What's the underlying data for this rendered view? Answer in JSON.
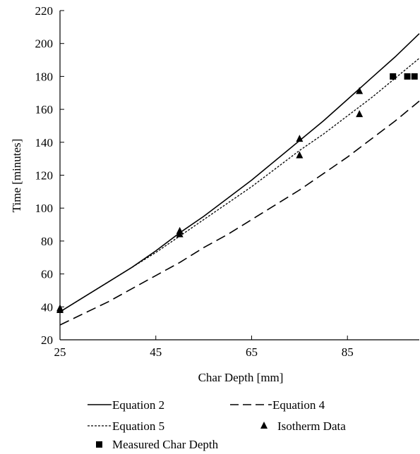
{
  "chart_data": {
    "type": "line",
    "title": "",
    "xlabel": "Char Depth [mm]",
    "ylabel": "Time [minutes]",
    "xlim": [
      25,
      100
    ],
    "ylim": [
      20,
      220
    ],
    "x_ticks": [
      25,
      45,
      65,
      85
    ],
    "y_ticks": [
      20,
      40,
      60,
      80,
      100,
      120,
      140,
      160,
      180,
      200,
      220
    ],
    "grid": false,
    "legend_position": "bottom",
    "series": [
      {
        "name": "Equation 2",
        "kind": "line",
        "dash": "solid",
        "x": [
          25,
          30,
          35,
          40,
          45,
          50,
          55,
          60,
          65,
          70,
          75,
          80,
          85,
          90,
          95,
          100
        ],
        "y": [
          37,
          46,
          55,
          64,
          74,
          85,
          95,
          106,
          117,
          129,
          141,
          153,
          166,
          179,
          192,
          206
        ]
      },
      {
        "name": "Equation 4",
        "kind": "line",
        "dash": "longdash",
        "x": [
          25,
          30,
          35,
          40,
          45,
          50,
          55,
          60,
          65,
          70,
          75,
          80,
          85,
          90,
          95,
          100
        ],
        "y": [
          29,
          36,
          43,
          51,
          59,
          67,
          76,
          84,
          93,
          102,
          111,
          121,
          131,
          142,
          153,
          165
        ]
      },
      {
        "name": "Equation 5",
        "kind": "line",
        "dash": "dotted",
        "x": [
          25,
          30,
          35,
          40,
          45,
          50,
          55,
          60,
          65,
          70,
          75,
          80,
          85,
          90,
          95,
          100
        ],
        "y": [
          37,
          46,
          55,
          64,
          73,
          83,
          93,
          103,
          113,
          124,
          135,
          145,
          156,
          167,
          179,
          191
        ]
      },
      {
        "name": "Isotherm Data",
        "kind": "marker",
        "marker": "triangle",
        "x": [
          25,
          25,
          50,
          50,
          75,
          75,
          87.5,
          87.5
        ],
        "y": [
          39,
          38,
          86,
          84,
          142,
          132,
          171,
          157
        ]
      },
      {
        "name": "Measured Char Depth",
        "kind": "marker",
        "marker": "square",
        "x": [
          94.5,
          97.5,
          99
        ],
        "y": [
          180,
          180,
          180
        ]
      }
    ]
  }
}
